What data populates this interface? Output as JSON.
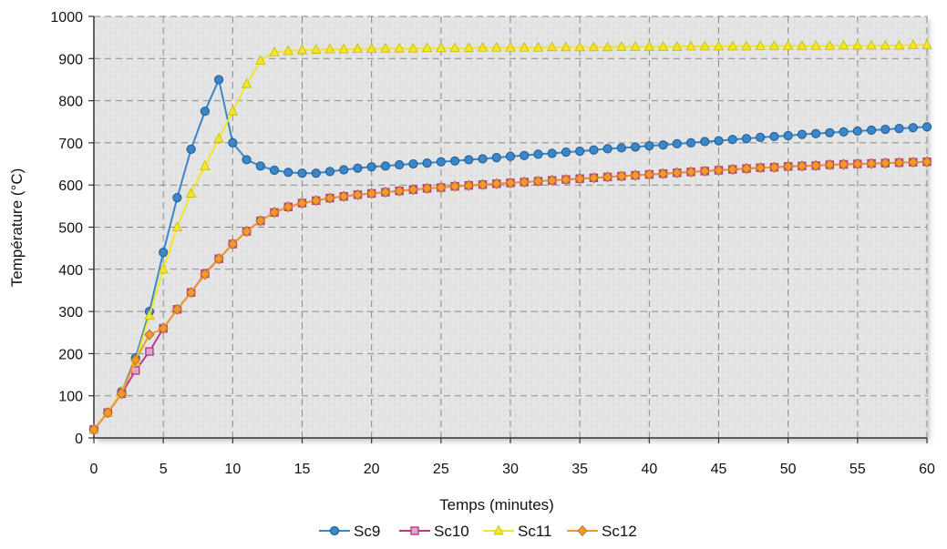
{
  "chart_data": {
    "type": "line",
    "xlabel": "Temps (minutes)",
    "ylabel": "Température (°C)",
    "xlim": [
      0,
      60
    ],
    "ylim": [
      0,
      1000
    ],
    "xticks": [
      0,
      5,
      10,
      15,
      20,
      25,
      30,
      35,
      40,
      45,
      50,
      55,
      60
    ],
    "yticks": [
      0,
      100,
      200,
      300,
      400,
      500,
      600,
      700,
      800,
      900,
      1000
    ],
    "grid": true,
    "legend_position": "bottom",
    "series": [
      {
        "name": "Sc9",
        "color": "#3a86c8",
        "marker": "circle",
        "x": [
          0,
          1,
          2,
          3,
          4,
          5,
          6,
          7,
          8,
          9,
          10,
          11,
          12,
          13,
          14,
          15,
          16,
          17,
          18,
          19,
          20,
          21,
          22,
          23,
          24,
          25,
          26,
          27,
          28,
          29,
          30,
          31,
          32,
          33,
          34,
          35,
          36,
          37,
          38,
          39,
          40,
          41,
          42,
          43,
          44,
          45,
          46,
          47,
          48,
          49,
          50,
          51,
          52,
          53,
          54,
          55,
          56,
          57,
          58,
          59,
          60
        ],
        "values": [
          20,
          60,
          110,
          190,
          300,
          440,
          570,
          685,
          775,
          850,
          700,
          660,
          645,
          635,
          630,
          628,
          628,
          632,
          636,
          640,
          643,
          645,
          648,
          650,
          652,
          655,
          657,
          660,
          662,
          665,
          668,
          670,
          673,
          675,
          678,
          680,
          683,
          686,
          688,
          690,
          693,
          695,
          698,
          700,
          703,
          705,
          708,
          710,
          713,
          715,
          717,
          720,
          722,
          724,
          726,
          728,
          730,
          732,
          734,
          736,
          738
        ]
      },
      {
        "name": "Sc10",
        "color": "#b8398e",
        "marker": "square",
        "x": [
          0,
          1,
          2,
          3,
          4,
          5,
          6,
          7,
          8,
          9,
          10,
          11,
          12,
          13,
          14,
          15,
          16,
          17,
          18,
          19,
          20,
          21,
          22,
          23,
          24,
          25,
          26,
          27,
          28,
          29,
          30,
          31,
          32,
          33,
          34,
          35,
          36,
          37,
          38,
          39,
          40,
          41,
          42,
          43,
          44,
          45,
          46,
          47,
          48,
          49,
          50,
          51,
          52,
          53,
          54,
          55,
          56,
          57,
          58,
          59,
          60
        ],
        "values": [
          20,
          60,
          105,
          160,
          205,
          260,
          305,
          345,
          390,
          425,
          460,
          490,
          515,
          535,
          548,
          557,
          563,
          569,
          573,
          577,
          580,
          583,
          586,
          589,
          592,
          594,
          597,
          599,
          601,
          603,
          605,
          607,
          609,
          611,
          613,
          615,
          617,
          619,
          621,
          623,
          625,
          627,
          629,
          631,
          633,
          635,
          637,
          639,
          641,
          642,
          644,
          645,
          646,
          648,
          649,
          650,
          651,
          652,
          653,
          654,
          655
        ]
      },
      {
        "name": "Sc11",
        "color": "#f0e62a",
        "marker": "triangle",
        "x": [
          0,
          1,
          2,
          3,
          4,
          5,
          6,
          7,
          8,
          9,
          10,
          11,
          12,
          13,
          14,
          15,
          16,
          17,
          18,
          19,
          20,
          21,
          22,
          23,
          24,
          25,
          26,
          27,
          28,
          29,
          30,
          31,
          32,
          33,
          34,
          35,
          36,
          37,
          38,
          39,
          40,
          41,
          42,
          43,
          44,
          45,
          46,
          47,
          48,
          49,
          50,
          51,
          52,
          53,
          54,
          55,
          56,
          57,
          58,
          59,
          60
        ],
        "values": [
          20,
          60,
          110,
          180,
          290,
          400,
          500,
          580,
          645,
          710,
          775,
          840,
          895,
          915,
          918,
          920,
          921,
          922,
          922,
          923,
          923,
          924,
          924,
          924,
          925,
          925,
          925,
          925,
          926,
          926,
          926,
          926,
          926,
          927,
          927,
          927,
          927,
          927,
          928,
          928,
          928,
          928,
          928,
          929,
          929,
          929,
          929,
          929,
          930,
          930,
          930,
          930,
          930,
          930,
          931,
          931,
          931,
          931,
          931,
          932,
          932
        ]
      },
      {
        "name": "Sc12",
        "color": "#f0992e",
        "marker": "diamond",
        "x": [
          0,
          1,
          2,
          3,
          4,
          5,
          6,
          7,
          8,
          9,
          10,
          11,
          12,
          13,
          14,
          15,
          16,
          17,
          18,
          19,
          20,
          21,
          22,
          23,
          24,
          25,
          26,
          27,
          28,
          29,
          30,
          31,
          32,
          33,
          34,
          35,
          36,
          37,
          38,
          39,
          40,
          41,
          42,
          43,
          44,
          45,
          46,
          47,
          48,
          49,
          50,
          51,
          52,
          53,
          54,
          55,
          56,
          57,
          58,
          59,
          60
        ],
        "values": [
          20,
          60,
          105,
          185,
          245,
          260,
          305,
          345,
          388,
          425,
          460,
          490,
          515,
          535,
          548,
          557,
          563,
          569,
          573,
          577,
          580,
          583,
          586,
          589,
          592,
          594,
          597,
          599,
          601,
          603,
          605,
          607,
          609,
          611,
          613,
          615,
          617,
          619,
          621,
          623,
          625,
          627,
          629,
          631,
          633,
          635,
          637,
          639,
          641,
          642,
          644,
          645,
          646,
          648,
          649,
          650,
          651,
          652,
          653,
          654,
          655
        ]
      }
    ]
  }
}
